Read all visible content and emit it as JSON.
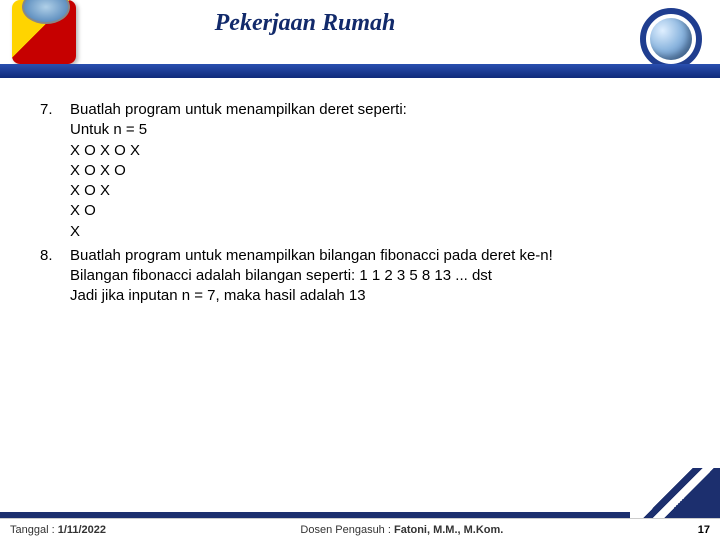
{
  "title": "Pekerjaan Rumah",
  "items": [
    {
      "num": "7.",
      "lines": [
        "Buatlah program untuk menampilkan deret seperti:",
        "Untuk n = 5",
        "X O X O X",
        "X O X O",
        "X O X",
        "X O",
        "X"
      ]
    },
    {
      "num": "8.",
      "lines": [
        "Buatlah program untuk menampilkan bilangan fibonacci pada deret ke-n!",
        "Bilangan fibonacci adalah bilangan seperti: 1 1 2 3 5 8 13 ... dst",
        "Jadi jika inputan n = 7, maka hasil adalah 13"
      ]
    }
  ],
  "footer": {
    "date_label": "Tanggal : ",
    "date_value": "1/11/2022",
    "center_label": "Dosen Pengasuh : ",
    "center_value": "Fatoni, M.M., M.Kom.",
    "page": "17"
  },
  "colors": {
    "brand_navy": "#1c2f6e",
    "title_color": "#122a6b",
    "bar_top": "#2a4fb0",
    "bar_bottom": "#0f2a7a"
  }
}
